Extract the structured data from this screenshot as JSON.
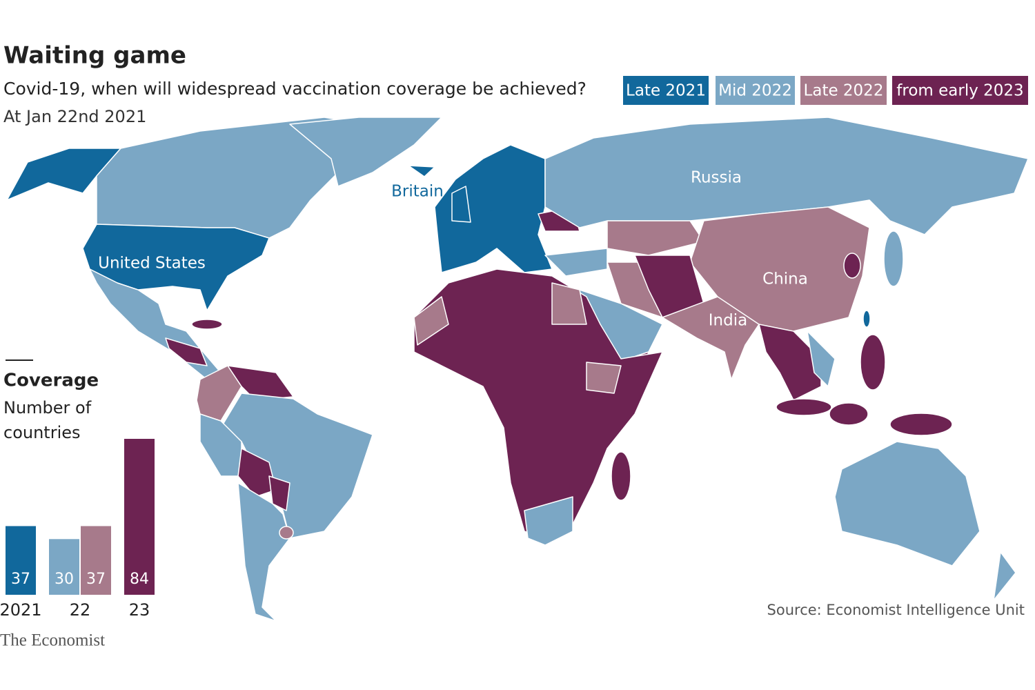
{
  "header": {
    "title": "Waiting game",
    "subtitle": "Covid-19, when will widespread vaccination coverage be achieved?",
    "date": "At Jan 22nd 2021"
  },
  "map_labels": {
    "britain": "Britain",
    "russia": "Russia",
    "united_states": "United States",
    "china": "China",
    "india": "India"
  },
  "chart_data": {
    "type": "bar",
    "title": "Coverage",
    "subtitle": "Number of countries",
    "categories": [
      "2021",
      "22",
      "23"
    ],
    "series": [
      {
        "name": "Late 2021",
        "color": "#11689c",
        "values": [
          37,
          null,
          null
        ]
      },
      {
        "name": "Mid 2022",
        "color": "#7ba7c5",
        "values": [
          null,
          30,
          null
        ]
      },
      {
        "name": "Late 2022",
        "color": "#a77a8b",
        "values": [
          null,
          37,
          null
        ]
      },
      {
        "name": "from early 2023",
        "color": "#6d2352",
        "values": [
          null,
          null,
          84
        ]
      }
    ]
  },
  "footer": {
    "source": "Source: Economist Intelligence Unit",
    "brand": "The Economist"
  }
}
